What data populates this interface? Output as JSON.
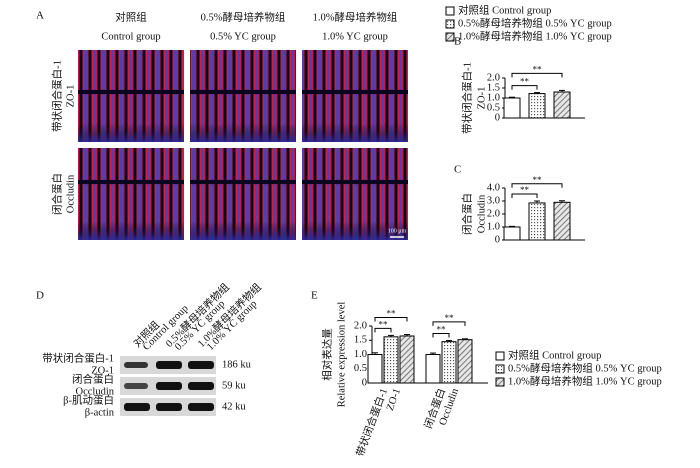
{
  "panel_a": {
    "label": "A",
    "columns": [
      {
        "zh": "对照组",
        "en": "Control group"
      },
      {
        "zh": "0.5%酵母培养物组",
        "en": "0.5% YC group"
      },
      {
        "zh": "1.0%酵母培养物组",
        "en": "1.0% YC group"
      }
    ],
    "rows": [
      {
        "zh": "带状闭合蛋白-1",
        "en": "ZO-1"
      },
      {
        "zh": "闭合蛋白",
        "en": "Occludin"
      }
    ],
    "scale_bar": "100 μm"
  },
  "legend": [
    "对照组  Control group",
    "0.5%酵母培养物组  0.5% YC group",
    "1.0%酵母培养物组  1.0% YC group"
  ],
  "panel_d": {
    "label": "D",
    "lanes": [
      {
        "zh": "对照组",
        "en": "Control group"
      },
      {
        "zh": "0.5%酵母培养物组",
        "en": "0.5% YC group"
      },
      {
        "zh": "1.0%酵母培养物组",
        "en": "1.0% YC group"
      }
    ],
    "rows": [
      {
        "zh": "带状闭合蛋白-1",
        "en": "ZO-1",
        "size": "186 ku"
      },
      {
        "zh": "闭合蛋白",
        "en": "Occludin",
        "size": "59 ku"
      },
      {
        "zh": "β-肌动蛋白",
        "en": "β-actin",
        "size": "42 ku"
      }
    ]
  },
  "chart_data": [
    {
      "type": "bar",
      "label": "B",
      "ylabel": [
        "带状闭合蛋白-1",
        "ZO-1"
      ],
      "values": [
        1.0,
        1.22,
        1.3
      ],
      "errors": [
        0.04,
        0.05,
        0.08
      ],
      "fills": [
        "white",
        "dots",
        "hatch"
      ],
      "ylim": [
        0,
        2.0
      ],
      "yticks": [
        0,
        0.5,
        {
          "value": 1.0,
          "label": "1.0"
        },
        1.5,
        {
          "value": 2.0,
          "label": "2.0"
        }
      ],
      "significance": [
        {
          "from": 0,
          "to": 1,
          "label": "**"
        },
        {
          "from": 0,
          "to": 2,
          "label": "**"
        }
      ]
    },
    {
      "type": "bar",
      "label": "C",
      "ylabel": [
        "闭合蛋白",
        "Occludin"
      ],
      "values": [
        1.0,
        2.85,
        2.9
      ],
      "errors": [
        0.05,
        0.15,
        0.12
      ],
      "fills": [
        "white",
        "dots",
        "hatch"
      ],
      "ylim": [
        0,
        4.0
      ],
      "yticks": [
        0,
        {
          "value": 1.0,
          "label": "1.0"
        },
        {
          "value": 2.0,
          "label": "2.0"
        },
        {
          "value": 3.0,
          "label": "3.0"
        },
        {
          "value": 4.0,
          "label": "4.0"
        }
      ],
      "significance": [
        {
          "from": 0,
          "to": 1,
          "label": "**"
        },
        {
          "from": 0,
          "to": 2,
          "label": "**"
        }
      ]
    },
    {
      "type": "grouped_bar",
      "label": "E",
      "ylabel": [
        "相对表达量",
        "Relative expression level"
      ],
      "categories": [
        "带状闭合蛋白-1",
        "闭合蛋白"
      ],
      "categories_en": [
        "ZO-1",
        "Occludin"
      ],
      "series": [
        {
          "name": "对照组  Control group",
          "fill": "white",
          "values": [
            1.0,
            1.0
          ],
          "errors": [
            0.06,
            0.05
          ]
        },
        {
          "name": "0.5%酵母培养物组  0.5% YC group",
          "fill": "dots",
          "values": [
            1.62,
            1.45
          ],
          "errors": [
            0.05,
            0.04
          ]
        },
        {
          "name": "1.0%酵母培养物组  1.0% YC group",
          "fill": "hatch",
          "values": [
            1.65,
            1.52
          ],
          "errors": [
            0.05,
            0.03
          ]
        }
      ],
      "ylim": [
        0,
        2.0
      ],
      "yticks": [
        0,
        0.5,
        {
          "value": 1.0,
          "label": "1.0"
        },
        1.5,
        {
          "value": 2.0,
          "label": "2.0"
        }
      ],
      "significance": [
        {
          "group": 0,
          "from": 0,
          "to": 1,
          "label": "**"
        },
        {
          "group": 0,
          "from": 0,
          "to": 2,
          "label": "**"
        },
        {
          "group": 1,
          "from": 0,
          "to": 1,
          "label": "**"
        },
        {
          "group": 1,
          "from": 0,
          "to": 2,
          "label": "**"
        }
      ]
    }
  ]
}
